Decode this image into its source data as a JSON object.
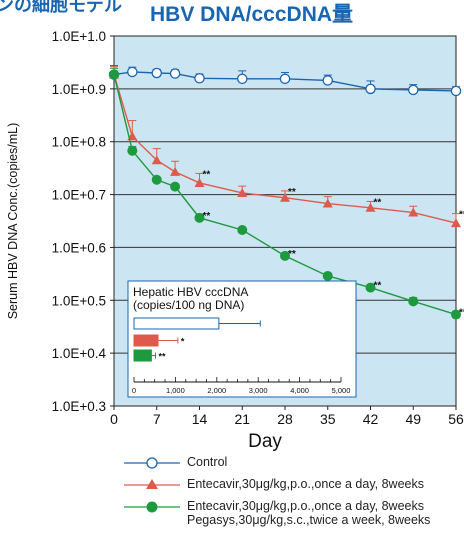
{
  "header": {
    "cut_text": "ンの細胞モデル",
    "title": "HBV DNA/cccDNA量"
  },
  "chart_data": {
    "type": "line",
    "title": "HBV DNA/cccDNA量",
    "xlabel": "Day",
    "ylabel": "Serum HBV DNA Conc.(copies/mL)",
    "x_ticks": [
      0,
      7,
      14,
      21,
      28,
      35,
      42,
      49,
      56
    ],
    "y_ticks": [
      "1.0E+0.3",
      "1.0E+0.4",
      "1.0E+0.5",
      "1.0E+0.6",
      "1.0E+0.7",
      "1.0E+0.8",
      "1.0E+0.9",
      "1.0E+1.0"
    ],
    "ylim": [
      0.3,
      1.0
    ],
    "xlim": [
      0,
      56
    ],
    "grid": "horizontal",
    "series": [
      {
        "name": "Control",
        "color": "#1a65b0",
        "marker": "open-circle",
        "x": [
          0,
          3,
          7,
          10,
          14,
          21,
          28,
          35,
          42,
          49,
          56
        ],
        "y": [
          0.927,
          0.932,
          0.93,
          0.929,
          0.92,
          0.919,
          0.919,
          0.916,
          0.9,
          0.898,
          0.896
        ],
        "err": [
          0.017,
          0.009,
          0.007,
          0.007,
          0.008,
          0.015,
          0.012,
          0.01,
          0.015,
          0.01,
          0.008
        ],
        "sig": [
          "",
          "",
          "",
          "",
          "",
          "",
          "",
          "",
          "",
          "",
          ""
        ]
      },
      {
        "name": "Entecavir,30μg/kg,p.o.,once a day, 8weeks",
        "color": "#e05a4b",
        "marker": "triangle",
        "x": [
          0,
          3,
          7,
          10,
          14,
          21,
          28,
          35,
          42,
          49,
          56
        ],
        "y": [
          0.927,
          0.81,
          0.765,
          0.743,
          0.722,
          0.703,
          0.694,
          0.683,
          0.675,
          0.666,
          0.646
        ],
        "err": [
          0.015,
          0.03,
          0.022,
          0.02,
          0.018,
          0.013,
          0.013,
          0.013,
          0.012,
          0.012,
          0.018
        ],
        "sig": [
          "",
          "",
          "",
          "",
          "**",
          "",
          "**",
          "",
          "**",
          "",
          "**"
        ]
      },
      {
        "name": "Entecavir,30μg/kg,p.o.,once a day, 8weeks\nPegasys,30μg/kg,s.c.,twice a week, 8weeks",
        "color": "#1e9a3e",
        "marker": "filled-circle",
        "x": [
          0,
          3,
          7,
          10,
          14,
          21,
          28,
          35,
          42,
          49,
          56
        ],
        "y": [
          0.927,
          0.783,
          0.728,
          0.715,
          0.656,
          0.633,
          0.584,
          0.546,
          0.524,
          0.498,
          0.473
        ],
        "err": [
          0.012,
          0.008,
          0.005,
          0.005,
          0.005,
          0.005,
          0.005,
          0.005,
          0.006,
          0.007,
          0.006
        ],
        "sig": [
          "",
          "",
          "",
          "",
          "**",
          "",
          "**",
          "",
          "**",
          "",
          "**"
        ]
      }
    ],
    "inset": {
      "type": "bar",
      "orientation": "horizontal",
      "title": "Hepatic HBV cccDNA\n(copies/100 ng DNA)",
      "xlim": [
        0,
        5000
      ],
      "x_ticks": [
        0,
        1000,
        2000,
        3000,
        4000,
        5000
      ],
      "x_tick_labels": [
        "0",
        "1,000",
        "2,000",
        "3,000",
        "4,000",
        "5,000"
      ],
      "bars": [
        {
          "value": 2050,
          "err": 1000,
          "color": "#ffffff",
          "stroke": "#1a65b0",
          "sig": ""
        },
        {
          "value": 580,
          "err": 480,
          "color": "#e05a4b",
          "stroke": "#e05a4b",
          "sig": "*"
        },
        {
          "value": 420,
          "err": 100,
          "color": "#1e9a3e",
          "stroke": "#1e9a3e",
          "sig": "**"
        }
      ]
    }
  },
  "legend": [
    {
      "text": "Control"
    },
    {
      "text": "Entecavir,30μg/kg,p.o.,once a day, 8weeks"
    },
    {
      "text": "Entecavir,30μg/kg,p.o.,once a day, 8weeks",
      "text2": "Pegasys,30μg/kg,s.c.,twice a week, 8weeks"
    }
  ]
}
